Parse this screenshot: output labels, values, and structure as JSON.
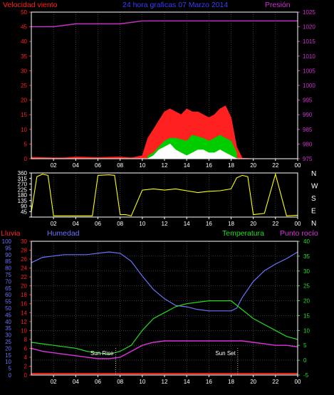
{
  "header": {
    "wind_label": "Velocidad viento",
    "title": "24 hora graficas  07 Marzo 2014",
    "pressure_label": "Presión"
  },
  "colors": {
    "background": "#000000",
    "frame": "#ffffff",
    "wind": "#ff2020",
    "gust": "#00cc00",
    "wind_low": "#ffffff",
    "pressure": "#cc33cc",
    "direction": "#ffff00",
    "rain": "#ff2020",
    "humidity": "#6b72ff",
    "temperature": "#22dd22",
    "dewpoint": "#dd33dd",
    "title": "#3b3bff",
    "grid": "#606060"
  },
  "chart_data": [
    {
      "type": "area",
      "name": "wind_pressure",
      "title": "24 hora graficas  07 Marzo 2014",
      "ylabel_left": "Velocidad viento",
      "ylabel_right": "Presión",
      "ylim_left": [
        0,
        50
      ],
      "yticks_left": [
        0,
        5,
        10,
        15,
        20,
        25,
        30,
        35,
        40,
        45,
        50
      ],
      "ylim_right": [
        975,
        1025
      ],
      "yticks_right": [
        975,
        980,
        985,
        990,
        995,
        1000,
        1005,
        1010,
        1015,
        1020,
        1025
      ],
      "xlim": [
        0,
        24
      ],
      "xticks": [
        "02",
        "04",
        "06",
        "08",
        "10",
        "12",
        "14",
        "16",
        "18",
        "20",
        "22",
        "00"
      ],
      "grid": true,
      "series": [
        {
          "name": "wind",
          "axis": "left",
          "x": [
            0,
            1,
            2,
            3,
            4,
            5,
            6,
            7,
            8,
            9,
            10,
            10.5,
            11,
            11.5,
            12,
            12.5,
            13,
            13.5,
            14,
            14.5,
            15,
            15.5,
            16,
            16.5,
            17,
            17.5,
            18,
            18.5,
            19,
            20,
            22,
            24
          ],
          "y": [
            0.5,
            0.4,
            0.3,
            0.3,
            0.6,
            0.5,
            0.4,
            0.5,
            0.6,
            0.3,
            1,
            7,
            10,
            13,
            16,
            17,
            16,
            15,
            17,
            16,
            16,
            15,
            14,
            15,
            17,
            18,
            14,
            4,
            0.2,
            0,
            0,
            0
          ]
        },
        {
          "name": "gust",
          "axis": "left",
          "x": [
            10.5,
            11,
            11.5,
            12,
            12.5,
            13,
            13.5,
            14,
            14.5,
            15,
            15.5,
            16,
            16.5,
            17,
            17.5,
            18,
            18.5
          ],
          "y": [
            1,
            2,
            4,
            6,
            7,
            7,
            6.5,
            6,
            8,
            7.5,
            7,
            6,
            7,
            8,
            7,
            6,
            2
          ]
        },
        {
          "name": "wind_low",
          "axis": "left",
          "x": [
            10.5,
            11,
            11.5,
            12,
            12.5,
            13,
            13.5,
            14,
            14.5,
            15,
            15.5,
            16,
            16.5,
            17,
            17.5,
            18,
            18.5
          ],
          "y": [
            0,
            1,
            3,
            4,
            5,
            3,
            2,
            1,
            2,
            3,
            3,
            2,
            2,
            3,
            2,
            1,
            0
          ]
        },
        {
          "name": "pressure",
          "axis": "right",
          "x": [
            0,
            2,
            4,
            6,
            8,
            10,
            12,
            14,
            16,
            18,
            20,
            22,
            24
          ],
          "y": [
            1020,
            1020,
            1021,
            1021,
            1021,
            1022,
            1022,
            1022,
            1022,
            1022,
            1022,
            1022,
            1022
          ]
        }
      ]
    },
    {
      "type": "line",
      "name": "wind_direction",
      "ylim": [
        0,
        360
      ],
      "yticks": [
        0,
        45,
        90,
        135,
        180,
        225,
        270,
        315,
        360
      ],
      "ytick_labels": [
        "",
        "45",
        "90",
        "135",
        "180",
        "225",
        "270",
        "315",
        "360"
      ],
      "direction_labels": [
        "N",
        "W",
        "S",
        "E",
        "N"
      ],
      "xlim": [
        0,
        24
      ],
      "xticks": [
        "02",
        "04",
        "06",
        "08",
        "10",
        "12",
        "14",
        "16",
        "18",
        "20",
        "22",
        "00"
      ],
      "grid": true,
      "series": [
        {
          "name": "direction",
          "x": [
            0,
            0.5,
            1,
            1.5,
            2,
            3,
            4,
            5,
            5.5,
            6,
            7,
            7.5,
            8,
            8.5,
            9,
            10,
            11,
            12,
            13,
            14,
            15,
            16,
            17,
            18,
            18.5,
            19,
            19.5,
            20,
            21,
            22,
            23,
            24
          ],
          "y": [
            40,
            330,
            350,
            340,
            10,
            10,
            10,
            10,
            10,
            340,
            345,
            340,
            20,
            20,
            10,
            220,
            230,
            220,
            230,
            215,
            200,
            210,
            215,
            230,
            320,
            340,
            330,
            20,
            30,
            350,
            10,
            15
          ]
        }
      ]
    },
    {
      "type": "line",
      "name": "humidity_temperature",
      "ylabel_rain": "Lluvia",
      "ylabel_humidity": "Humedad",
      "ylabel_temperature": "Temperatura",
      "ylabel_dewpoint": "Punto rocío",
      "humidity_ylim": [
        0,
        100
      ],
      "humidity_yticks": [
        0,
        5,
        10,
        15,
        20,
        25,
        30,
        35,
        40,
        45,
        50,
        55,
        60,
        65,
        70,
        75,
        80,
        85,
        90,
        95,
        100
      ],
      "rain_ylim": [
        0,
        30
      ],
      "rain_yticks": [
        0,
        2,
        4,
        6,
        8,
        10,
        12,
        14,
        16,
        18,
        20,
        22,
        24,
        26,
        28,
        30
      ],
      "temp_ylim": [
        -5,
        40
      ],
      "temp_yticks": [
        -5,
        0,
        5,
        10,
        15,
        20,
        25,
        30,
        35,
        40
      ],
      "xlim": [
        0,
        24
      ],
      "xticks": [
        "02",
        "04",
        "06",
        "08",
        "10",
        "12",
        "14",
        "16",
        "18",
        "20",
        "22",
        "00"
      ],
      "grid": true,
      "annotations": [
        {
          "text": "Sun Rise",
          "x": 7.6
        },
        {
          "text": "Sun Set",
          "x": 18.6
        }
      ],
      "series": [
        {
          "name": "rain",
          "axis": "rain",
          "x": [
            0,
            24
          ],
          "y": [
            0.3,
            0.3
          ]
        },
        {
          "name": "humidity",
          "axis": "humidity",
          "x": [
            0,
            0.5,
            1,
            2,
            3,
            4,
            5,
            6,
            7,
            8,
            9,
            10,
            11,
            12,
            13,
            14,
            15,
            16,
            17,
            18,
            18.5,
            19,
            20,
            21,
            22,
            23,
            24
          ],
          "y": [
            84,
            86,
            88,
            89,
            90,
            90,
            90,
            91,
            92,
            91,
            85,
            74,
            64,
            57,
            52,
            51,
            49,
            48,
            48,
            48,
            50,
            58,
            70,
            78,
            83,
            87,
            92
          ]
        },
        {
          "name": "temperature",
          "axis": "temp",
          "x": [
            0,
            1,
            2,
            3,
            4,
            5,
            6,
            7,
            8,
            9,
            10,
            11,
            12,
            13,
            14,
            15,
            16,
            17,
            18,
            19,
            20,
            21,
            22,
            23,
            24
          ],
          "y": [
            6,
            5.5,
            5,
            4.5,
            4,
            3,
            2.5,
            2,
            3,
            5,
            10,
            14,
            16,
            18,
            19,
            19.5,
            20,
            20,
            20,
            17,
            14,
            12,
            10,
            8,
            7
          ]
        },
        {
          "name": "dewpoint",
          "axis": "temp",
          "x": [
            0,
            1,
            2,
            3,
            4,
            5,
            6,
            7,
            8,
            9,
            10,
            11,
            12,
            13,
            14,
            15,
            16,
            17,
            18,
            19,
            20,
            21,
            22,
            23,
            24
          ],
          "y": [
            4,
            3,
            2.5,
            2,
            1.5,
            1,
            0.5,
            0.5,
            1,
            3,
            5,
            6,
            6.5,
            6.5,
            6.5,
            6.5,
            6.5,
            6.5,
            6.5,
            6.5,
            6,
            5.5,
            5,
            5,
            4.5
          ]
        }
      ]
    }
  ]
}
